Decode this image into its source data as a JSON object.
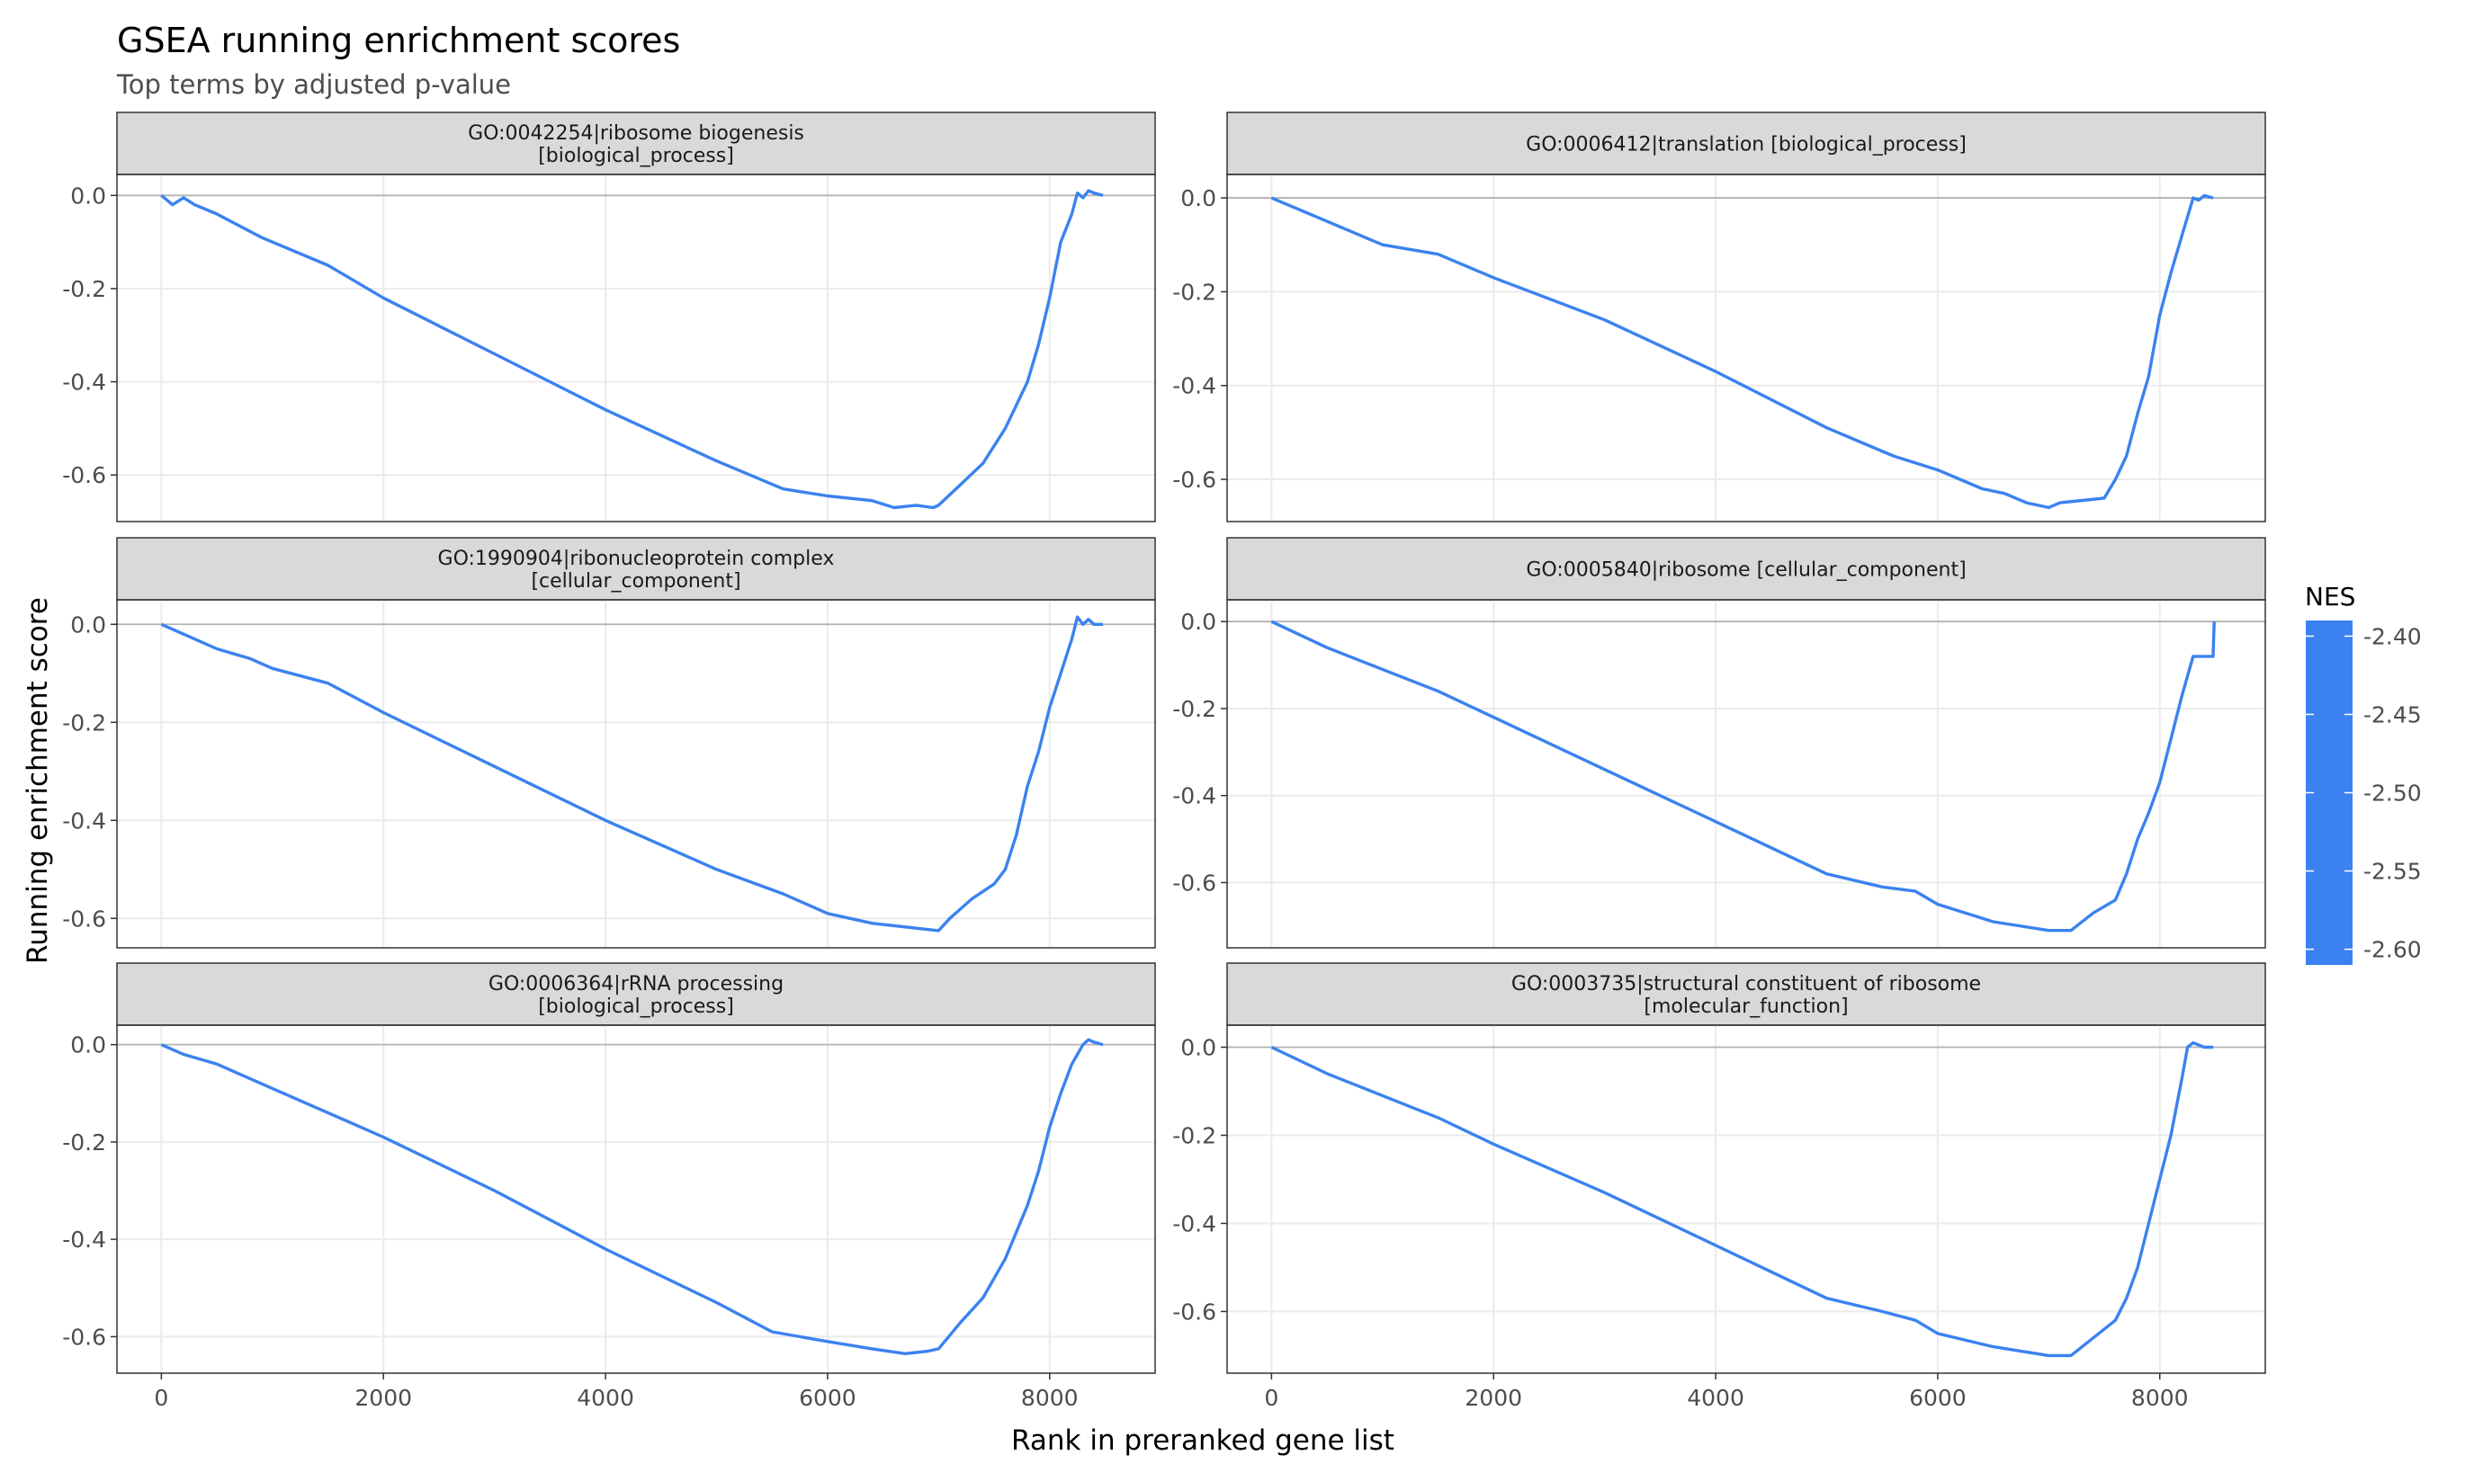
{
  "figure": {
    "title": "GSEA running enrichment scores",
    "subtitle": "Top terms by adjusted p-value",
    "xlabel": "Rank in preranked gene list",
    "ylabel": "Running enrichment score"
  },
  "colors": {
    "line": "#3b82f0",
    "strip_bg": "#d9d9d9",
    "grid": "#ebebeb",
    "zero_line": "#b3b3b3",
    "panel_border": "#333333",
    "title": "#000000",
    "subtitle": "#4d4d4d",
    "tick_text": "#4d4d4d"
  },
  "legend": {
    "title": "NES",
    "ticks": [
      "-2.40",
      "-2.45",
      "-2.50",
      "-2.55",
      "-2.60"
    ],
    "tick_values": [
      -2.4,
      -2.45,
      -2.5,
      -2.55,
      -2.6
    ],
    "range": [
      -2.61,
      -2.39
    ],
    "color": "#3b82f0"
  },
  "chart_data": [
    {
      "type": "line",
      "facet": "GO:0042254|ribosome biogenesis [biological_process]",
      "strip_lines": [
        "GO:0042254|ribosome biogenesis",
        "[biological_process]"
      ],
      "xlim": [
        -400,
        8950
      ],
      "ylim": [
        -0.7,
        0.045
      ],
      "xticks": [
        0,
        2000,
        4000,
        6000,
        8000
      ],
      "yticks": [
        0.0,
        -0.2,
        -0.4,
        -0.6
      ],
      "ytick_labels": [
        "0.0",
        "-0.2",
        "-0.4",
        "-0.6"
      ],
      "x": [
        0,
        100,
        200,
        300,
        500,
        900,
        1500,
        2000,
        3000,
        4000,
        5000,
        5600,
        6000,
        6400,
        6600,
        6800,
        6950,
        7000,
        7200,
        7400,
        7600,
        7800,
        7900,
        8000,
        8100,
        8200,
        8250,
        8300,
        8350,
        8400,
        8480
      ],
      "y": [
        0.0,
        -0.02,
        -0.005,
        -0.02,
        -0.04,
        -0.09,
        -0.15,
        -0.22,
        -0.34,
        -0.46,
        -0.57,
        -0.63,
        -0.645,
        -0.655,
        -0.67,
        -0.665,
        -0.67,
        -0.665,
        -0.62,
        -0.575,
        -0.5,
        -0.4,
        -0.32,
        -0.22,
        -0.1,
        -0.04,
        0.005,
        -0.005,
        0.01,
        0.005,
        0.0
      ]
    },
    {
      "type": "line",
      "facet": "GO:0006412|translation [biological_process]",
      "strip_lines": [
        "GO:0006412|translation [biological_process]"
      ],
      "xlim": [
        -400,
        8950
      ],
      "ylim": [
        -0.69,
        0.05
      ],
      "xticks": [
        0,
        2000,
        4000,
        6000,
        8000
      ],
      "yticks": [
        0.0,
        -0.2,
        -0.4,
        -0.6
      ],
      "ytick_labels": [
        "0.0",
        "-0.2",
        "-0.4",
        "-0.6"
      ],
      "x": [
        0,
        100,
        300,
        700,
        1000,
        1500,
        2000,
        3000,
        4000,
        5000,
        5600,
        6000,
        6400,
        6600,
        6800,
        7000,
        7100,
        7300,
        7500,
        7600,
        7700,
        7800,
        7900,
        8000,
        8100,
        8200,
        8300,
        8350,
        8400,
        8480
      ],
      "y": [
        0.0,
        -0.01,
        -0.03,
        -0.07,
        -0.1,
        -0.12,
        -0.17,
        -0.26,
        -0.37,
        -0.49,
        -0.55,
        -0.58,
        -0.62,
        -0.63,
        -0.65,
        -0.66,
        -0.65,
        -0.645,
        -0.64,
        -0.6,
        -0.55,
        -0.46,
        -0.38,
        -0.25,
        -0.16,
        -0.08,
        0.0,
        -0.005,
        0.005,
        0.0
      ]
    },
    {
      "type": "line",
      "facet": "GO:1990904|ribonucleoprotein complex [cellular_component]",
      "strip_lines": [
        "GO:1990904|ribonucleoprotein complex",
        "[cellular_component]"
      ],
      "xlim": [
        -400,
        8950
      ],
      "ylim": [
        -0.66,
        0.05
      ],
      "xticks": [
        0,
        2000,
        4000,
        6000,
        8000
      ],
      "yticks": [
        0.0,
        -0.2,
        -0.4,
        -0.6
      ],
      "ytick_labels": [
        "0.0",
        "-0.2",
        "-0.4",
        "-0.6"
      ],
      "x": [
        0,
        200,
        500,
        800,
        1000,
        1500,
        2000,
        3000,
        4000,
        5000,
        5600,
        6000,
        6400,
        6800,
        7000,
        7100,
        7300,
        7500,
        7600,
        7700,
        7800,
        7900,
        8000,
        8100,
        8200,
        8250,
        8300,
        8350,
        8400,
        8480
      ],
      "y": [
        0.0,
        -0.02,
        -0.05,
        -0.07,
        -0.09,
        -0.12,
        -0.18,
        -0.29,
        -0.4,
        -0.5,
        -0.55,
        -0.59,
        -0.61,
        -0.62,
        -0.625,
        -0.6,
        -0.56,
        -0.53,
        -0.5,
        -0.43,
        -0.33,
        -0.26,
        -0.17,
        -0.1,
        -0.03,
        0.015,
        0.0,
        0.01,
        0.0,
        0.0
      ]
    },
    {
      "type": "line",
      "facet": "GO:0005840|ribosome [cellular_component]",
      "strip_lines": [
        "GO:0005840|ribosome [cellular_component]"
      ],
      "xlim": [
        -400,
        8950
      ],
      "ylim": [
        -0.75,
        0.05
      ],
      "xticks": [
        0,
        2000,
        4000,
        6000,
        8000
      ],
      "yticks": [
        0.0,
        -0.2,
        -0.4,
        -0.6
      ],
      "ytick_labels": [
        "0.0",
        "-0.2",
        "-0.4",
        "-0.6"
      ],
      "x": [
        0,
        500,
        1000,
        1500,
        2000,
        3000,
        4000,
        5000,
        5500,
        5800,
        6000,
        6500,
        7000,
        7200,
        7400,
        7600,
        7700,
        7800,
        7900,
        8000,
        8100,
        8200,
        8300,
        8400,
        8480,
        8490
      ],
      "y": [
        0.0,
        -0.06,
        -0.11,
        -0.16,
        -0.22,
        -0.34,
        -0.46,
        -0.58,
        -0.61,
        -0.62,
        -0.65,
        -0.69,
        -0.71,
        -0.71,
        -0.67,
        -0.64,
        -0.58,
        -0.5,
        -0.44,
        -0.37,
        -0.27,
        -0.17,
        -0.08,
        -0.08,
        -0.08,
        0.0
      ]
    },
    {
      "type": "line",
      "facet": "GO:0006364|rRNA processing [biological_process]",
      "strip_lines": [
        "GO:0006364|rRNA processing",
        "[biological_process]"
      ],
      "xlim": [
        -400,
        8950
      ],
      "ylim": [
        -0.675,
        0.04
      ],
      "xticks": [
        0,
        2000,
        4000,
        6000,
        8000
      ],
      "yticks": [
        0.0,
        -0.2,
        -0.4,
        -0.6
      ],
      "ytick_labels": [
        "0.0",
        "-0.2",
        "-0.4",
        "-0.6"
      ],
      "x": [
        0,
        200,
        500,
        1000,
        1500,
        2000,
        3000,
        4000,
        5000,
        5500,
        6000,
        6400,
        6700,
        6900,
        7000,
        7200,
        7400,
        7600,
        7800,
        7900,
        8000,
        8100,
        8200,
        8300,
        8350,
        8400,
        8480
      ],
      "y": [
        0.0,
        -0.02,
        -0.04,
        -0.09,
        -0.14,
        -0.19,
        -0.3,
        -0.42,
        -0.53,
        -0.59,
        -0.61,
        -0.625,
        -0.635,
        -0.63,
        -0.625,
        -0.57,
        -0.52,
        -0.44,
        -0.33,
        -0.26,
        -0.17,
        -0.1,
        -0.04,
        0.0,
        0.01,
        0.005,
        0.0
      ]
    },
    {
      "type": "line",
      "facet": "GO:0003735|structural constituent of ribosome [molecular_function]",
      "strip_lines": [
        "GO:0003735|structural constituent of ribosome",
        "[molecular_function]"
      ],
      "xlim": [
        -400,
        8950
      ],
      "ylim": [
        -0.74,
        0.05
      ],
      "xticks": [
        0,
        2000,
        4000,
        6000,
        8000
      ],
      "yticks": [
        0.0,
        -0.2,
        -0.4,
        -0.6
      ],
      "ytick_labels": [
        "0.0",
        "-0.2",
        "-0.4",
        "-0.6"
      ],
      "x": [
        0,
        500,
        1000,
        1500,
        2000,
        3000,
        4000,
        5000,
        5500,
        5800,
        6000,
        6500,
        7000,
        7200,
        7400,
        7600,
        7700,
        7800,
        7900,
        8000,
        8100,
        8200,
        8250,
        8300,
        8400,
        8480
      ],
      "y": [
        0.0,
        -0.06,
        -0.11,
        -0.16,
        -0.22,
        -0.33,
        -0.45,
        -0.57,
        -0.6,
        -0.62,
        -0.65,
        -0.68,
        -0.7,
        -0.7,
        -0.66,
        -0.62,
        -0.57,
        -0.5,
        -0.4,
        -0.3,
        -0.2,
        -0.07,
        0.0,
        0.01,
        0.0,
        0.0
      ]
    }
  ]
}
